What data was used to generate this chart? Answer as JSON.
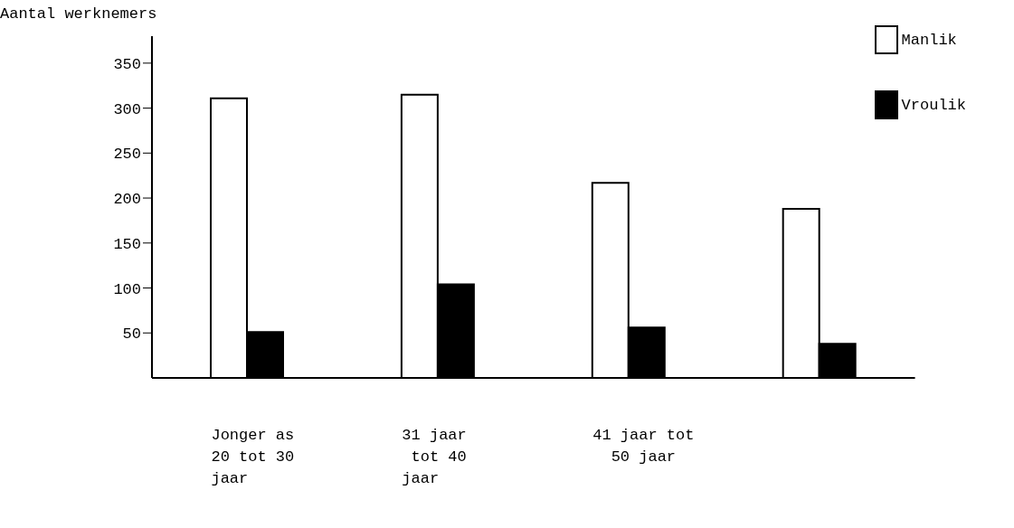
{
  "chart_data": {
    "type": "bar",
    "ylabel": "Aantal werknemers",
    "categories": [
      "Jonger as\n20 tot 30\njaar",
      "31 jaar\n tot 40\njaar",
      "41 jaar tot\n  50 jaar",
      null
    ],
    "series": [
      {
        "name": "Manlik",
        "color": "#ffffff",
        "values": [
          311,
          315,
          217,
          188
        ]
      },
      {
        "name": "Vroulik",
        "color": "#000000",
        "values": [
          51,
          104,
          56,
          38
        ]
      }
    ],
    "ylim": [
      0,
      380
    ],
    "yticks": [
      50,
      100,
      150,
      200,
      250,
      300,
      350
    ],
    "grid": false,
    "legend": "top right"
  }
}
